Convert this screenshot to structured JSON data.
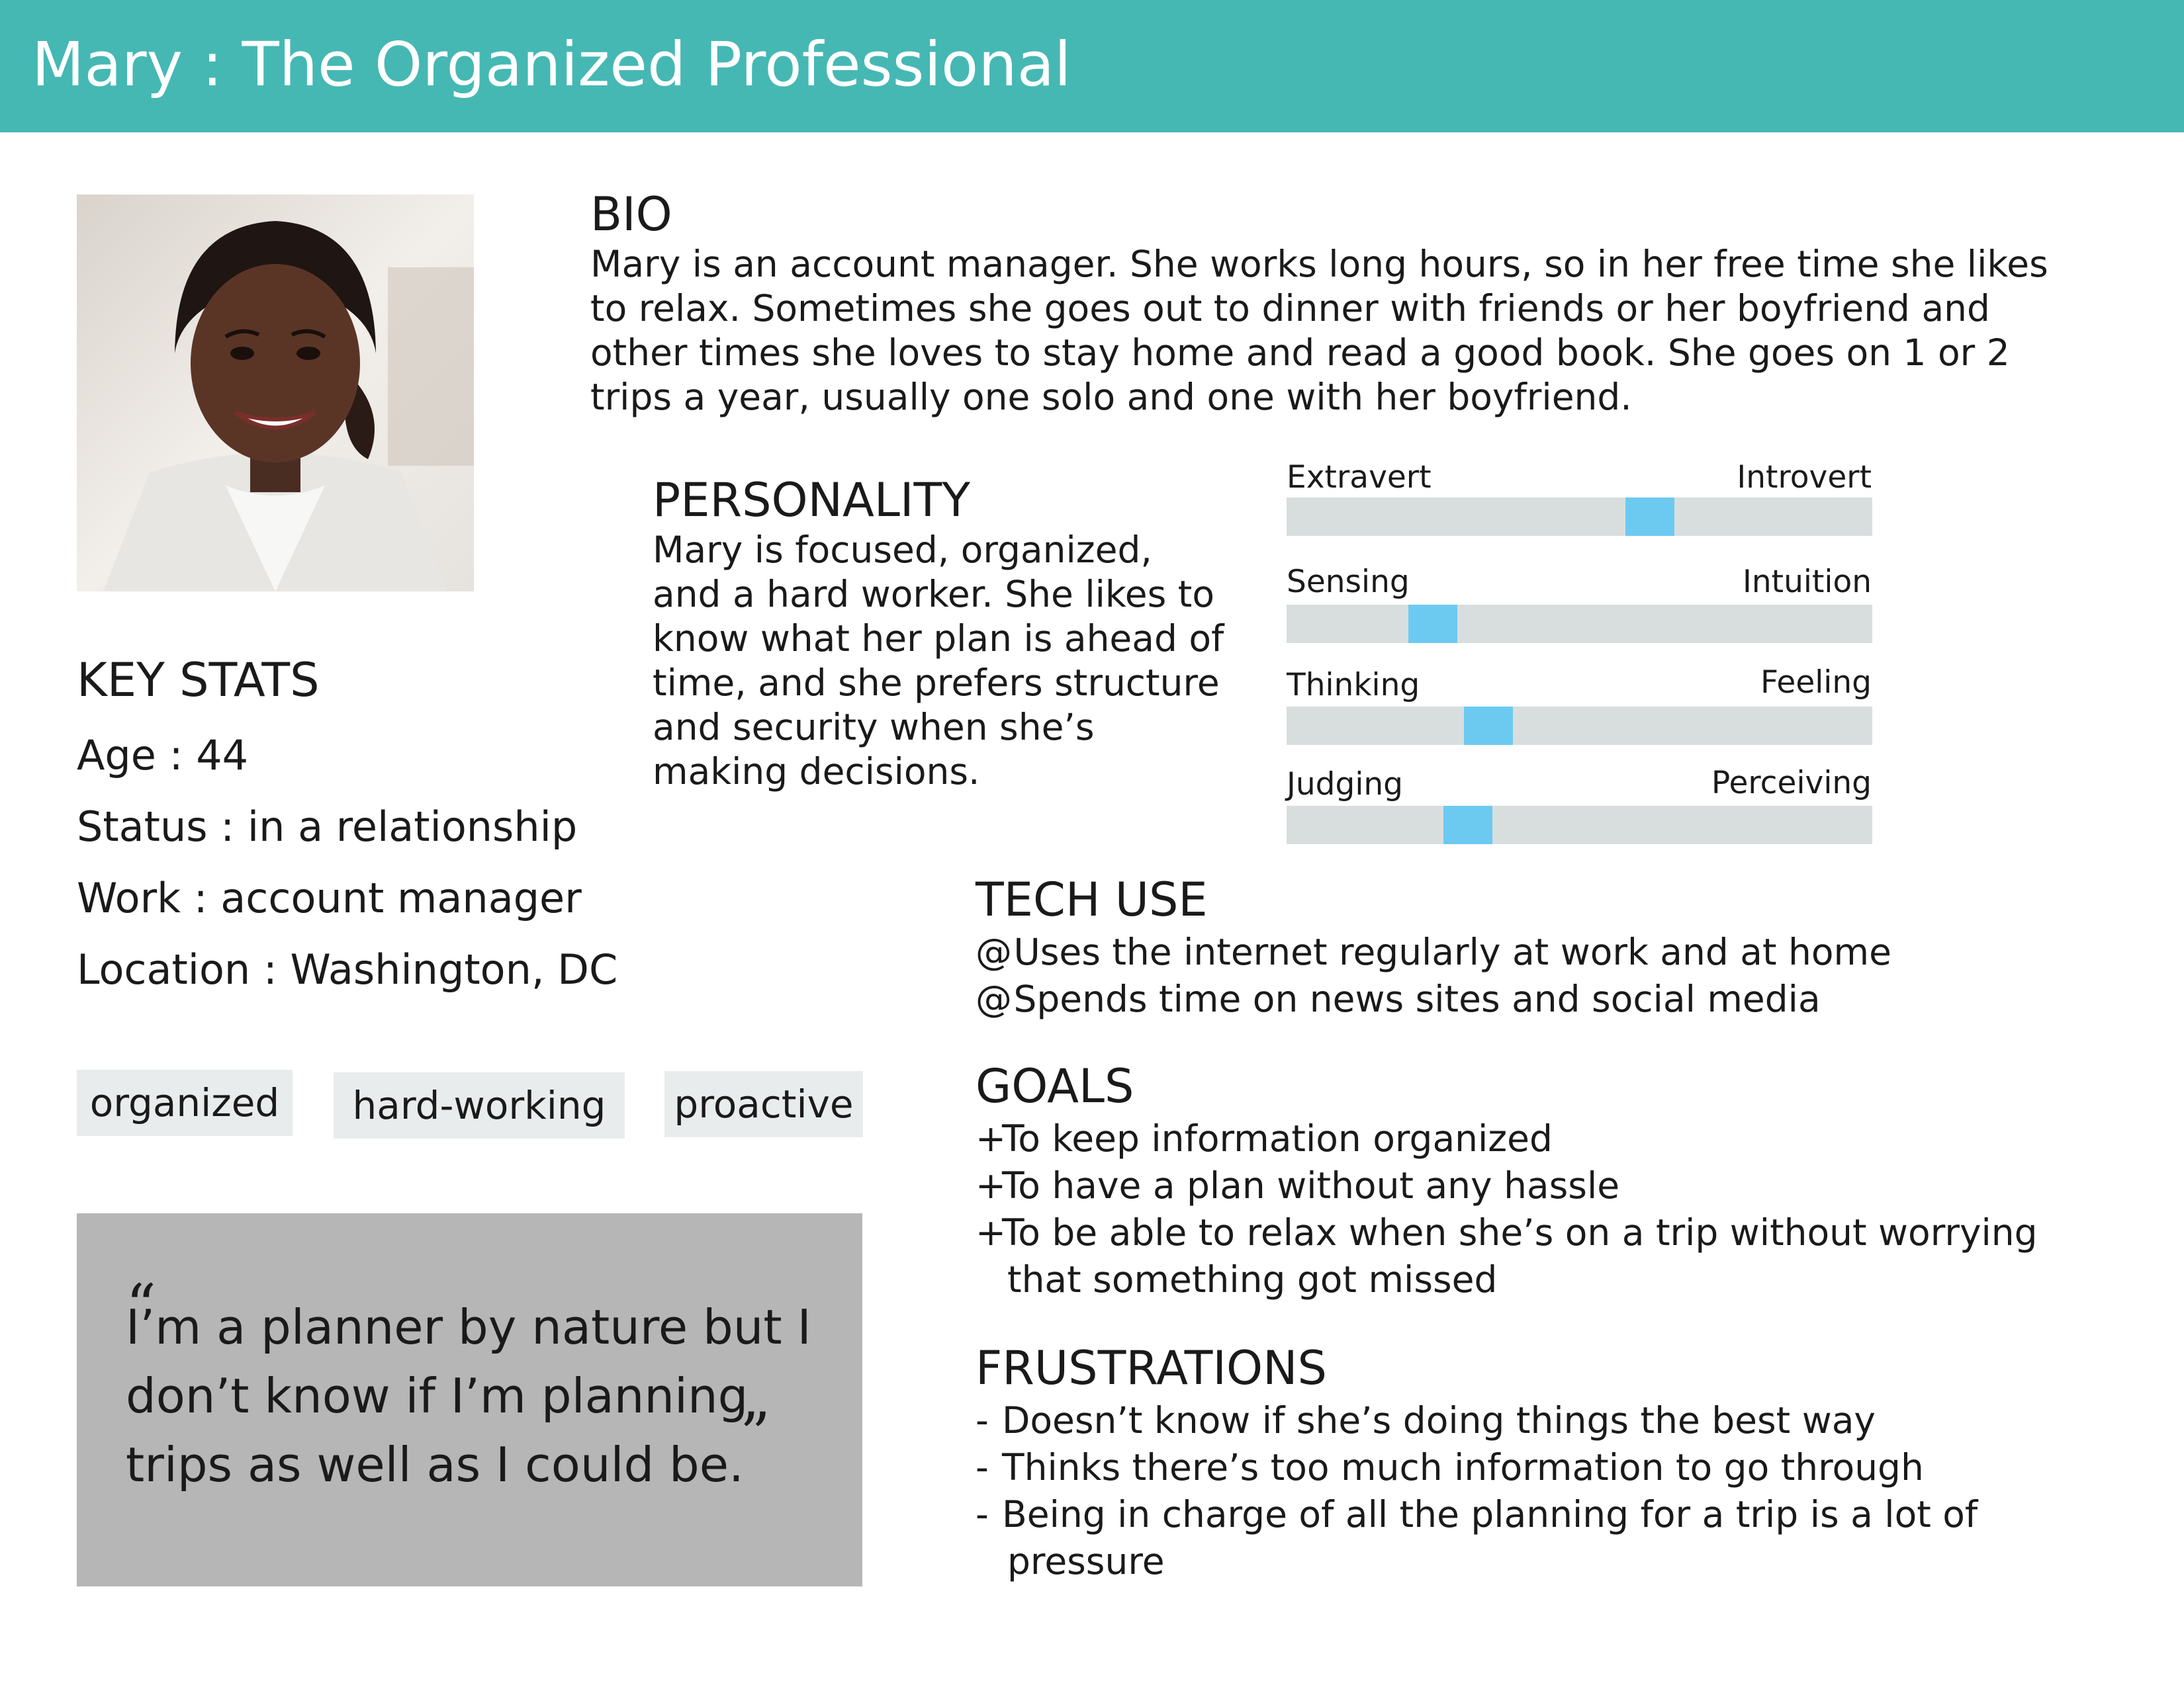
{
  "header": {
    "title": "Mary : The Organized Professional"
  },
  "bio": {
    "title": "BIO",
    "text": "Mary is an account manager. She works long hours, so in her free time she likes to relax. Sometimes she goes out to dinner with friends or her boyfriend and other times she loves to stay home and read a good book. She goes on 1 or 2 trips a year, usually one solo and one with her boyfriend."
  },
  "personality": {
    "title": "PERSONALITY",
    "text": "Mary is focused, organized, and a hard worker. She likes to know what her plan is ahead of time, and she prefers structure and security when she’s making decisions.",
    "scales": [
      {
        "left": "Extravert",
        "right": "Introvert",
        "value": 0.62
      },
      {
        "left": "Sensing",
        "right": "Intuition",
        "value": 0.25
      },
      {
        "left": "Thinking",
        "right": "Feeling",
        "value": 0.345
      },
      {
        "left": "Judging",
        "right": "Perceiving",
        "value": 0.31
      }
    ],
    "marker_color": "#6ccaf1",
    "track_color": "#d8dede"
  },
  "key_stats": {
    "title": "KEY STATS",
    "age": "Age : 44",
    "status": "Status : in a relationship",
    "work": "Work : account manager",
    "location": "Location : Washington, DC"
  },
  "tags": [
    "organized",
    "hard-working",
    "proactive"
  ],
  "quote": {
    "open_mark": "“",
    "close_mark": "”",
    "text": "I’m a planner by nature but I don’t know if I’m planning trips as well as I could be."
  },
  "tech_use": {
    "title": "TECH USE",
    "bullet": "@",
    "items": [
      "Uses the internet regularly at work and at home",
      "Spends time on news sites and social media"
    ]
  },
  "goals": {
    "title": "GOALS",
    "bullet": "+",
    "items": [
      "To keep information organized",
      "To have a plan without any hassle",
      "To be able to relax when she’s on a trip without worrying"
    ],
    "continuation": "that something got missed"
  },
  "frustrations": {
    "title": "FRUSTRATIONS",
    "bullet": "-",
    "items": [
      "Doesn’t know if she’s doing things the best way",
      "Thinks there’s too much information to go through",
      "Being in charge of all the planning for a trip is a lot of"
    ],
    "continuation": "pressure"
  },
  "colors": {
    "header": "#45b8b4",
    "quote_box": "#b6b6b6",
    "tag_bg": "#e9ecec"
  }
}
